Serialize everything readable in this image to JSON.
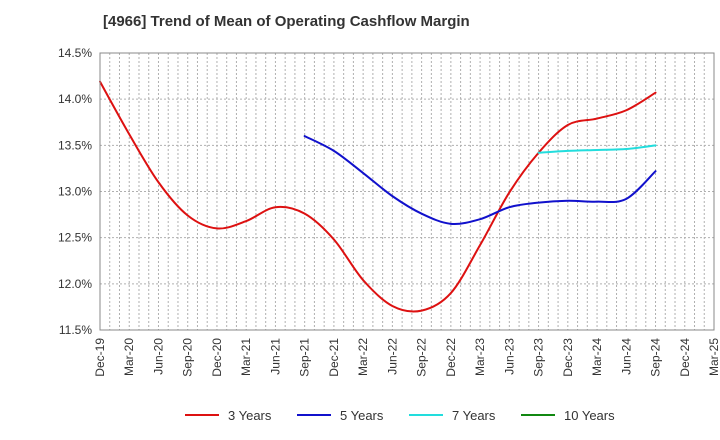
{
  "chart_data": {
    "type": "line",
    "title": "[4966]  Trend of Mean of Operating Cashflow Margin",
    "xlabel": "",
    "ylabel": "",
    "x": [
      "Dec-19",
      "Mar-20",
      "Jun-20",
      "Sep-20",
      "Dec-20",
      "Mar-21",
      "Jun-21",
      "Sep-21",
      "Dec-21",
      "Mar-22",
      "Jun-22",
      "Sep-22",
      "Dec-22",
      "Mar-23",
      "Jun-23",
      "Sep-23",
      "Dec-23",
      "Mar-24",
      "Jun-24",
      "Sep-24",
      "Dec-24",
      "Mar-25"
    ],
    "ylim": [
      11.5,
      14.5
    ],
    "yticks": [
      11.5,
      12.0,
      12.5,
      13.0,
      13.5,
      14.0,
      14.5
    ],
    "ytick_labels": [
      "11.5%",
      "12.0%",
      "12.5%",
      "13.0%",
      "13.5%",
      "14.0%",
      "14.5%"
    ],
    "grid": true,
    "legend_position": "bottom",
    "series": [
      {
        "name": "3 Years",
        "color": "#dd1111",
        "values": [
          14.19,
          13.62,
          13.1,
          12.74,
          12.6,
          12.68,
          12.83,
          12.76,
          12.48,
          12.04,
          11.76,
          11.71,
          11.9,
          12.42,
          12.99,
          13.42,
          13.72,
          13.79,
          13.88,
          14.07,
          null,
          null
        ]
      },
      {
        "name": "5 Years",
        "color": "#1111cc",
        "values": [
          null,
          null,
          null,
          null,
          null,
          null,
          null,
          13.6,
          13.44,
          13.2,
          12.95,
          12.76,
          12.65,
          12.7,
          12.83,
          12.88,
          12.9,
          12.89,
          12.92,
          13.22,
          null,
          null
        ]
      },
      {
        "name": "7 Years",
        "color": "#22dddd",
        "values": [
          null,
          null,
          null,
          null,
          null,
          null,
          null,
          null,
          null,
          null,
          null,
          null,
          null,
          null,
          null,
          13.42,
          13.44,
          13.45,
          13.46,
          13.5,
          null,
          null
        ]
      },
      {
        "name": "10 Years",
        "color": "#118811",
        "values": [
          null,
          null,
          null,
          null,
          null,
          null,
          null,
          null,
          null,
          null,
          null,
          null,
          null,
          null,
          null,
          null,
          null,
          null,
          null,
          null,
          null,
          null
        ]
      }
    ]
  }
}
